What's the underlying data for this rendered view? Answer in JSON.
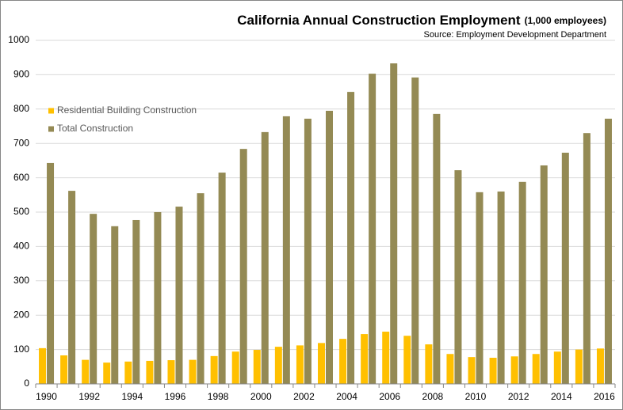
{
  "chart_data": {
    "type": "bar",
    "title": "California Annual Construction Employment",
    "title_unit": "(1,000 employees)",
    "subtitle": "Source:  Employment Development Department",
    "categories": [
      "1990",
      null,
      "1992",
      null,
      "1994",
      null,
      "1996",
      null,
      "1998",
      null,
      "2000",
      null,
      "2002",
      null,
      "2004",
      null,
      "2006",
      null,
      "2008",
      null,
      "2010",
      null,
      "2012",
      null,
      "2014",
      null,
      "2016"
    ],
    "series": [
      {
        "name": "Residential Building Construction",
        "color": "#ffc000",
        "values": [
          104,
          83,
          70,
          62,
          65,
          67,
          69,
          70,
          81,
          94,
          99,
          108,
          112,
          119,
          131,
          145,
          152,
          140,
          115,
          87,
          78,
          76,
          80,
          87,
          94,
          100,
          103
        ]
      },
      {
        "name": "Total Construction",
        "color": "#948a54",
        "values": [
          643,
          562,
          495,
          459,
          477,
          500,
          516,
          555,
          615,
          684,
          733,
          779,
          772,
          795,
          850,
          903,
          933,
          892,
          786,
          622,
          558,
          560,
          588,
          636,
          673,
          730,
          772
        ]
      }
    ],
    "ylim": [
      0,
      1000
    ],
    "yticks": [
      0,
      100,
      200,
      300,
      400,
      500,
      600,
      700,
      800,
      900,
      1000
    ],
    "grid": true,
    "legend": "upper left"
  }
}
